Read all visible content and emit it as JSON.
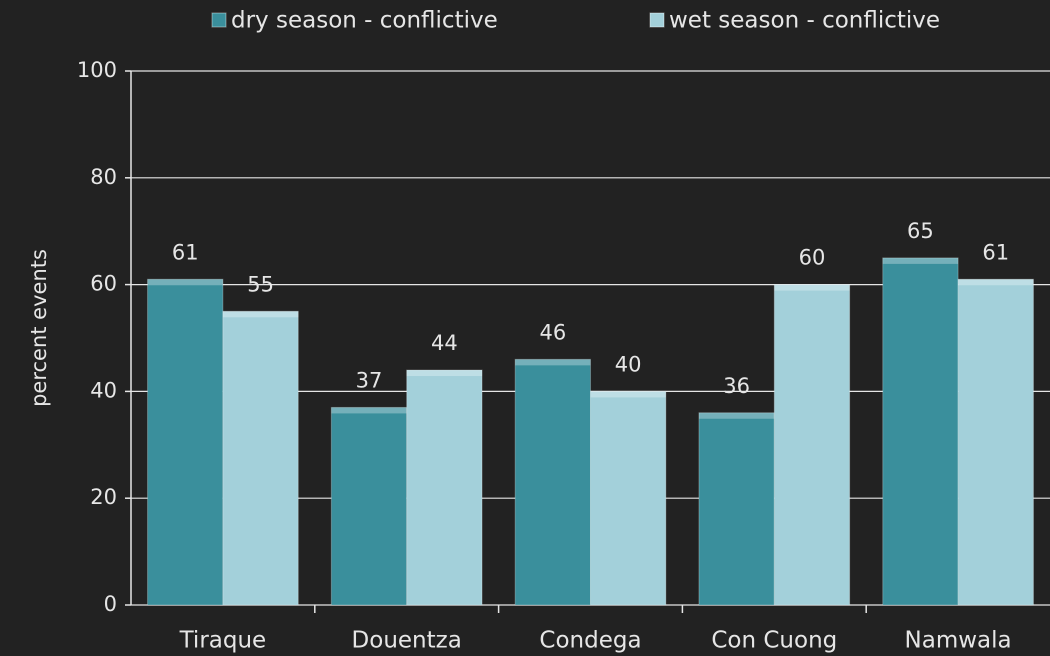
{
  "chart_data": {
    "type": "bar",
    "y_label": "percent events",
    "categories": [
      "Tiraque",
      "Douentza",
      "Condega",
      "Con Cuong",
      "Namwala"
    ],
    "series": [
      {
        "name": "dry season - conflictive",
        "color": "#3a8f9c",
        "values": [
          61,
          37,
          46,
          36,
          65
        ]
      },
      {
        "name": "wet season - conflictive",
        "color": "#a3d0da",
        "values": [
          55,
          44,
          40,
          60,
          61
        ]
      }
    ],
    "ylim": [
      0,
      100
    ],
    "yticks": [
      0,
      20,
      40,
      60,
      80,
      100
    ],
    "grid": true,
    "legend": "top"
  }
}
